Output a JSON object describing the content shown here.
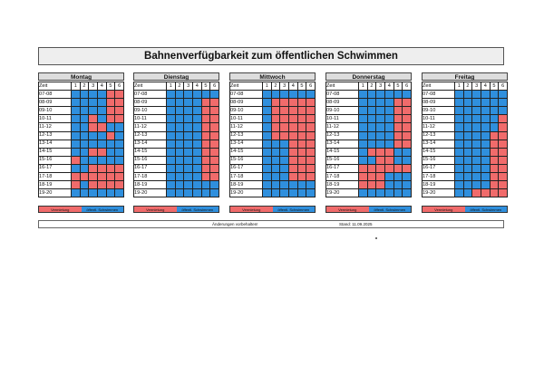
{
  "title": "Bahnenverfügbarkeit zum öffentlichen Schwimmen",
  "time_header": "Zeit",
  "lanes": [
    "1",
    "2",
    "3",
    "4",
    "5",
    "6"
  ],
  "slots": [
    "07-08",
    "08-09",
    "09-10",
    "10-11",
    "11-12",
    "12-13",
    "13-14",
    "14-15",
    "15-16",
    "16-17",
    "17-18",
    "18-19",
    "19-20"
  ],
  "days": [
    {
      "name": "Montag",
      "rows": [
        "BBBBRR",
        "BBBBRR",
        "BBBBRR",
        "BBRBRR",
        "BBRRBB",
        "BBBBRB",
        "BBBBBB",
        "BBRRBB",
        "RBBBBB",
        "BBRRRR",
        "RRRRRR",
        "RBRRRR",
        "BBBBBB"
      ]
    },
    {
      "name": "Dienstag",
      "rows": [
        "BBBBBB",
        "BBBBRR",
        "BBBBRR",
        "BBBBRR",
        "BBBBRR",
        "BBBBRR",
        "BBBBRR",
        "BBBBRR",
        "BBBBRR",
        "BBBBRR",
        "BBBBRR",
        "BBBBBB",
        "BBBBBB"
      ]
    },
    {
      "name": "Mittwoch",
      "rows": [
        "BBBBBB",
        "BRRRRR",
        "BRRRRR",
        "BRRRRR",
        "BRRRRR",
        "BRRRRR",
        "BBBRRR",
        "BBBRRR",
        "BBBRRR",
        "BBBRRR",
        "BBBRRR",
        "BBBBBB",
        "BBBBBB"
      ]
    },
    {
      "name": "Donnerstag",
      "rows": [
        "BBBBBB",
        "BBBBRR",
        "BBBBRR",
        "BBBBRR",
        "BBBBRR",
        "BBBBRR",
        "BBBBRR",
        "BRRRBB",
        "BBRRBB",
        "RRRRRR",
        "RRRBBB",
        "RRRBBB",
        "BBBBBB"
      ]
    },
    {
      "name": "Freitag",
      "rows": [
        "BBBBBB",
        "BBBBBB",
        "BBBBBB",
        "BBBBBR",
        "BBBBBR",
        "BBBBRR",
        "BBBBRR",
        "BBBBRR",
        "BBBBRR",
        "BBBBRR",
        "BBBBRR",
        "BBBBRR",
        "BBRRRR"
      ]
    }
  ],
  "legend": {
    "rented": "Vermietung",
    "public": "öffentl. Schwimmen"
  },
  "footer": {
    "note": "Änderungen vorbehalten!",
    "date": "Stand: 11.09.2025"
  },
  "colors": {
    "rented": "#f06b6b",
    "public": "#2f8fdd"
  }
}
